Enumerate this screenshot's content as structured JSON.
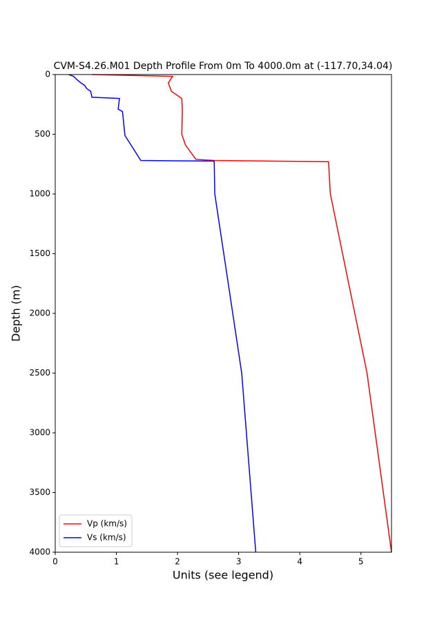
{
  "chart_data": {
    "type": "line",
    "title": "CVM-S4.26.M01 Depth Profile From 0m To 4000.0m at (-117.70,34.04)",
    "x_label": "Units (see legend)",
    "y_label": "Depth (m)",
    "xlim": [
      0,
      5.5
    ],
    "xticks": [
      0,
      1,
      2,
      3,
      4,
      5
    ],
    "ylim": [
      4000,
      0
    ],
    "yticks": [
      0,
      500,
      1000,
      1500,
      2000,
      2500,
      3000,
      3500,
      4000
    ],
    "legend": "lower left",
    "series": [
      {
        "name": "Vp (km/s)",
        "color": "#ff0000",
        "x": [
          0.6,
          1.92,
          1.85,
          1.9,
          2.07,
          2.08,
          2.07,
          2.13,
          2.3,
          2.6,
          4.47,
          4.5,
          5.1,
          5.5
        ],
        "values": [
          0,
          15,
          70,
          140,
          200,
          300,
          500,
          590,
          710,
          720,
          730,
          1000,
          2500,
          4000
        ]
      },
      {
        "name": "Vs (km/s)",
        "color": "#0000ff",
        "x": [
          0.22,
          0.3,
          0.35,
          0.42,
          0.48,
          0.52,
          0.58,
          0.6,
          1.05,
          1.03,
          1.1,
          1.14,
          1.4,
          2.6,
          2.61,
          3.05,
          3.28
        ],
        "values": [
          0,
          15,
          40,
          70,
          90,
          120,
          140,
          190,
          200,
          290,
          310,
          510,
          720,
          725,
          1000,
          2500,
          4000
        ]
      }
    ]
  }
}
